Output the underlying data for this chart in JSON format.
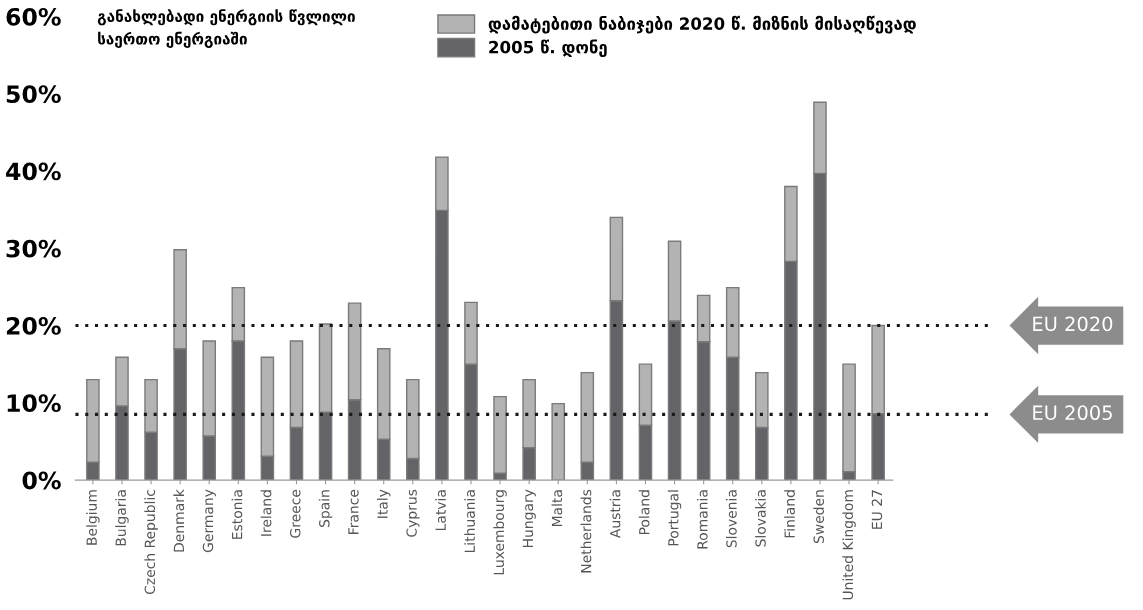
{
  "chart_data": {
    "type": "bar",
    "stacked": true,
    "title": "განახლებადი ენერგიის წვლილი\nსაერთო ენერგიაში",
    "categories": [
      "Belgium",
      "Bulgaria",
      "Czech Republic",
      "Denmark",
      "Germany",
      "Estonia",
      "Ireland",
      "Greece",
      "Spain",
      "France",
      "Italy",
      "Cyprus",
      "Latvia",
      "Lithuania",
      "Luxembourg",
      "Hungary",
      "Malta",
      "Netherlands",
      "Austria",
      "Poland",
      "Portugal",
      "Romania",
      "Slovenia",
      "Slovakia",
      "Finland",
      "Sweden",
      "United Kingdom",
      "EU 27"
    ],
    "series": [
      {
        "name": "2005 წ. დონე",
        "color": "#646468",
        "values": [
          2.3,
          9.6,
          6.2,
          17.0,
          5.7,
          18.0,
          3.1,
          6.8,
          8.8,
          10.4,
          5.3,
          2.8,
          34.9,
          15.0,
          0.9,
          4.2,
          0,
          2.3,
          23.2,
          7.1,
          20.6,
          17.9,
          15.9,
          6.8,
          28.3,
          39.7,
          1.1,
          8.6
        ]
      },
      {
        "name": "დამატებითი ნაბიჯები 2020 წ. მიზნის მისაღწევად",
        "color": "#b3b3b3",
        "values": [
          10.7,
          6.3,
          6.8,
          12.8,
          12.3,
          6.9,
          12.8,
          11.2,
          11.4,
          12.5,
          11.7,
          10.2,
          6.9,
          8.0,
          9.9,
          8.8,
          9.9,
          11.6,
          10.8,
          7.9,
          10.3,
          6.0,
          9.0,
          7.1,
          9.7,
          9.2,
          13.9,
          11.4
        ]
      }
    ],
    "ylim": [
      0,
      60
    ],
    "yticks": [
      {
        "value": 0,
        "label": "0%"
      },
      {
        "value": 10,
        "label": "10%"
      },
      {
        "value": 20,
        "label": "20%"
      },
      {
        "value": 30,
        "label": "30%"
      },
      {
        "value": 40,
        "label": "40%"
      },
      {
        "value": 50,
        "label": "50%"
      },
      {
        "value": 60,
        "label": "60%"
      }
    ],
    "ref_lines": [
      {
        "axis": "y",
        "value": 20,
        "label": "EU 2020",
        "color": "#1a1a1a",
        "line_style": "dotted"
      },
      {
        "axis": "y",
        "value": 8.5,
        "label": "EU 2005",
        "color": "#1a1a1a",
        "line_style": "dotted"
      }
    ],
    "grid": false,
    "legend": "top"
  }
}
